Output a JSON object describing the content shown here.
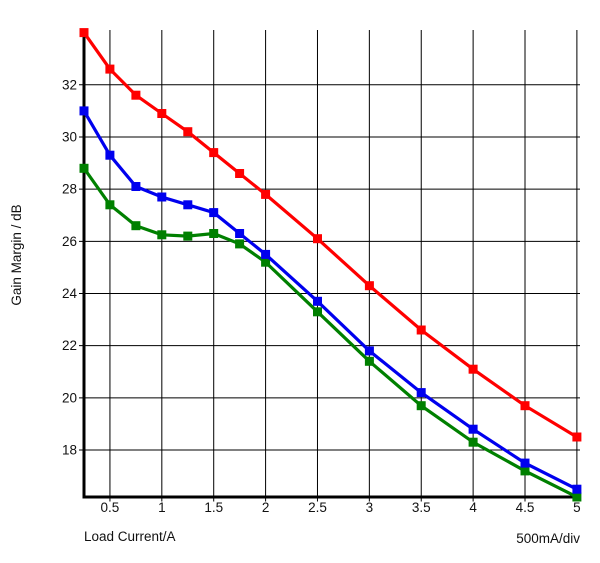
{
  "chart_data": {
    "type": "line",
    "title": "",
    "xlabel": "Load Current/A",
    "ylabel": "Gain Margin / dB",
    "x_div_label": "500mA/div",
    "x": [
      0.25,
      0.5,
      0.75,
      1.0,
      1.25,
      1.5,
      1.75,
      2.0,
      2.5,
      3.0,
      3.5,
      4.0,
      4.5,
      5.0
    ],
    "series": [
      {
        "name": "green",
        "color": "#008000",
        "values": [
          28.8,
          27.4,
          26.6,
          26.25,
          26.2,
          26.3,
          25.9,
          25.2,
          23.3,
          21.4,
          19.7,
          18.3,
          17.2,
          16.2
        ]
      },
      {
        "name": "blue",
        "color": "#0000EE",
        "values": [
          31.0,
          29.3,
          28.1,
          27.7,
          27.4,
          27.1,
          26.3,
          25.5,
          23.7,
          21.8,
          20.2,
          18.8,
          17.5,
          16.5
        ]
      },
      {
        "name": "red",
        "color": "#FF0000",
        "values": [
          34.0,
          32.6,
          31.6,
          30.9,
          30.2,
          29.4,
          28.6,
          27.8,
          26.1,
          24.3,
          22.6,
          21.1,
          19.7,
          18.5
        ]
      }
    ],
    "xlim": [
      0.25,
      5.03
    ],
    "ylim": [
      16.2,
      34.1
    ],
    "x_ticks": [
      0.5,
      1,
      1.5,
      2,
      2.5,
      3,
      3.5,
      4,
      4.5,
      5
    ],
    "x_tick_labels": [
      "0.5",
      "1",
      "1.5",
      "2",
      "2.5",
      "3",
      "3.5",
      "4",
      "4.5",
      "5"
    ],
    "y_ticks": [
      18,
      20,
      22,
      24,
      26,
      28,
      30,
      32
    ],
    "y_tick_labels": [
      "18",
      "20",
      "22",
      "24",
      "26",
      "28",
      "30",
      "32"
    ],
    "grid": true,
    "legend": "none",
    "marker": "square",
    "marker_size": 9
  }
}
